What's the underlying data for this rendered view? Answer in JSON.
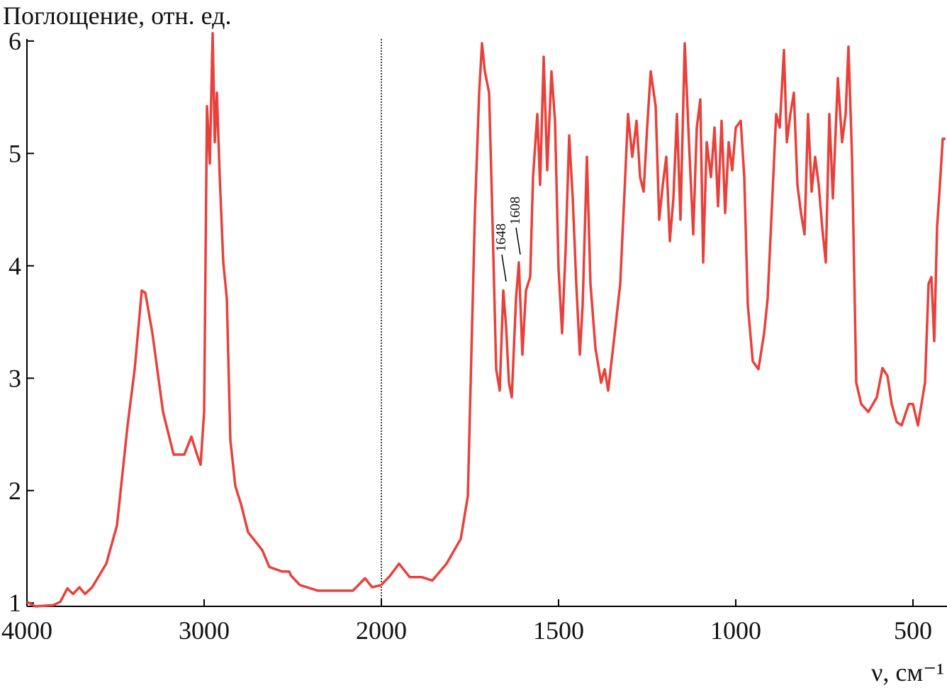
{
  "chart_data": [
    {
      "type": "line",
      "y_label": "Поглощение, отн. ед.",
      "color": "#e8413b",
      "xlim": [
        4000,
        2000
      ],
      "xticks": [
        4000,
        3000,
        2000
      ],
      "ylim": [
        0.97,
        6.1
      ],
      "yticks": [
        1,
        2,
        3,
        4,
        5,
        6
      ],
      "x": [
        4000,
        3952,
        3852,
        3812,
        3772,
        3740,
        3704,
        3672,
        3632,
        3552,
        3492,
        3432,
        3392,
        3352,
        3332,
        3292,
        3232,
        3172,
        3112,
        3072,
        3040,
        3020,
        3000,
        2984,
        2968,
        2952,
        2940,
        2928,
        2912,
        2892,
        2872,
        2852,
        2824,
        2792,
        2752,
        2672,
        2632,
        2560,
        2520,
        2508,
        2460,
        2360,
        2160,
        2092,
        2052,
        2000
      ],
      "values": [
        1.01,
        0.97,
        0.98,
        1.01,
        1.13,
        1.08,
        1.14,
        1.08,
        1.14,
        1.35,
        1.69,
        2.58,
        3.08,
        3.78,
        3.76,
        3.4,
        2.7,
        2.32,
        2.32,
        2.48,
        2.32,
        2.23,
        2.7,
        5.42,
        4.91,
        6.07,
        5.1,
        5.54,
        4.79,
        4.03,
        3.71,
        2.45,
        2.04,
        1.88,
        1.63,
        1.47,
        1.32,
        1.28,
        1.28,
        1.24,
        1.16,
        1.11,
        1.11,
        1.22,
        1.14,
        1.16
      ]
    },
    {
      "type": "line",
      "x_label": "ν, см⁻¹",
      "color": "#e8413b",
      "xlim": [
        2000,
        408
      ],
      "xticks": [
        1500,
        1000,
        500
      ],
      "ylim": [
        0.97,
        6.1
      ],
      "x": [
        2000,
        1976,
        1950,
        1920,
        1886,
        1856,
        1816,
        1776,
        1756,
        1746,
        1736,
        1724,
        1716,
        1708,
        1696,
        1688,
        1676,
        1666,
        1656,
        1648,
        1640,
        1632,
        1620,
        1612,
        1602,
        1592,
        1580,
        1572,
        1560,
        1552,
        1542,
        1532,
        1520,
        1510,
        1500,
        1490,
        1480,
        1470,
        1460,
        1450,
        1440,
        1432,
        1420,
        1410,
        1396,
        1380,
        1370,
        1360,
        1344,
        1326,
        1312,
        1304,
        1292,
        1280,
        1270,
        1260,
        1250,
        1240,
        1226,
        1216,
        1206,
        1196,
        1186,
        1176,
        1166,
        1156,
        1144,
        1132,
        1120,
        1110,
        1100,
        1092,
        1082,
        1070,
        1060,
        1050,
        1040,
        1030,
        1020,
        1010,
        1000,
        986,
        976,
        966,
        952,
        936,
        920,
        910,
        896,
        886,
        876,
        864,
        856,
        846,
        836,
        826,
        816,
        806,
        796,
        786,
        776,
        766,
        756,
        746,
        736,
        726,
        712,
        700,
        690,
        682,
        672,
        660,
        646,
        626,
        602,
        586,
        572,
        560,
        546,
        532,
        512,
        500,
        486,
        476,
        466,
        456,
        448,
        440,
        432,
        424,
        416,
        408
      ],
      "values": [
        1.16,
        1.24,
        1.35,
        1.23,
        1.23,
        1.2,
        1.35,
        1.57,
        1.95,
        3.21,
        4.47,
        5.54,
        5.98,
        5.73,
        5.54,
        4.6,
        3.08,
        2.89,
        3.78,
        3.46,
        2.96,
        2.83,
        3.71,
        4.03,
        3.21,
        3.78,
        3.9,
        4.79,
        5.35,
        4.72,
        5.86,
        4.85,
        5.73,
        5.29,
        3.97,
        3.4,
        4.15,
        5.16,
        4.6,
        3.84,
        3.21,
        3.65,
        4.97,
        3.84,
        3.27,
        2.96,
        3.08,
        2.89,
        3.33,
        3.84,
        4.79,
        5.35,
        4.97,
        5.29,
        4.79,
        4.66,
        5.23,
        5.73,
        5.42,
        4.41,
        4.72,
        4.97,
        4.22,
        4.6,
        5.35,
        4.41,
        5.98,
        5.1,
        4.28,
        5.23,
        5.48,
        4.03,
        5.1,
        4.79,
        5.23,
        4.53,
        5.29,
        4.47,
        5.1,
        4.85,
        5.23,
        5.29,
        4.79,
        3.65,
        3.15,
        3.08,
        3.4,
        3.71,
        4.66,
        5.35,
        5.23,
        5.92,
        5.1,
        5.35,
        5.54,
        4.72,
        4.47,
        4.28,
        5.35,
        4.66,
        4.97,
        4.72,
        4.34,
        4.03,
        5.35,
        4.6,
        5.67,
        5.1,
        5.35,
        5.95,
        4.97,
        2.96,
        2.77,
        2.7,
        2.83,
        3.09,
        3.02,
        2.77,
        2.61,
        2.58,
        2.77,
        2.77,
        2.58,
        2.77,
        2.96,
        3.84,
        3.9,
        3.33,
        4.34,
        4.72,
        5.13,
        5.13
      ],
      "annotations": [
        {
          "x": 1648,
          "y": 3.86
        },
        {
          "x": 1608,
          "y": 4.1
        }
      ]
    }
  ]
}
